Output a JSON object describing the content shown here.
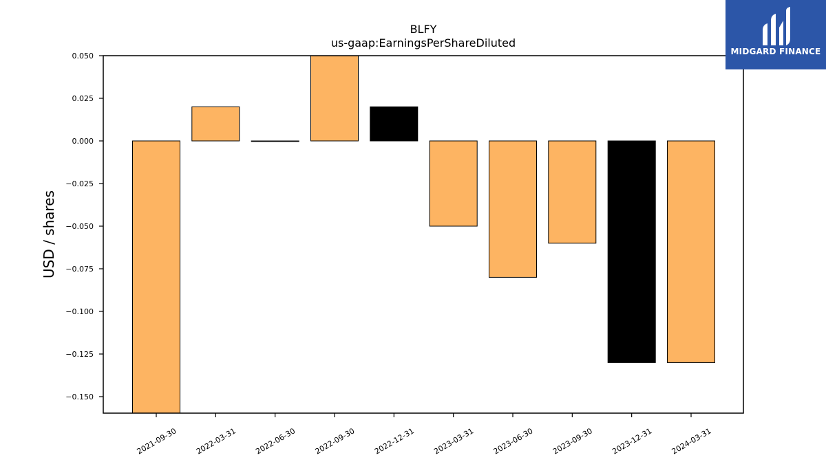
{
  "chart_data": {
    "type": "bar",
    "title": "BLFY",
    "subtitle": "us-gaap:EarningsPerShareDiluted",
    "xlabel": "",
    "ylabel": "USD / shares",
    "categories": [
      "2021-09-30",
      "2022-03-31",
      "2022-06-30",
      "2022-09-30",
      "2022-12-31",
      "2023-03-31",
      "2023-06-30",
      "2023-09-30",
      "2023-12-31",
      "2024-03-31"
    ],
    "values": [
      -0.16,
      0.02,
      0.0,
      0.05,
      0.02,
      -0.05,
      -0.08,
      -0.06,
      -0.13,
      -0.13
    ],
    "bar_colors": [
      "#fdb462",
      "#fdb462",
      "#fdb462",
      "#fdb462",
      "#000000",
      "#fdb462",
      "#fdb462",
      "#fdb462",
      "#000000",
      "#fdb462"
    ],
    "edge_color": "#000000",
    "ylim": [
      -0.16,
      0.05
    ],
    "yticks": [
      0.05,
      0.025,
      0.0,
      -0.025,
      -0.05,
      -0.075,
      -0.1,
      -0.125,
      -0.15
    ],
    "ytick_labels": [
      "0.050",
      "0.025",
      "0.000",
      "−0.025",
      "−0.050",
      "−0.075",
      "−0.100",
      "−0.125",
      "−0.150"
    ],
    "grid": false,
    "legend": "none"
  },
  "logo": {
    "text": "MIDGARD FINANCE",
    "background": "#2c56a8"
  }
}
